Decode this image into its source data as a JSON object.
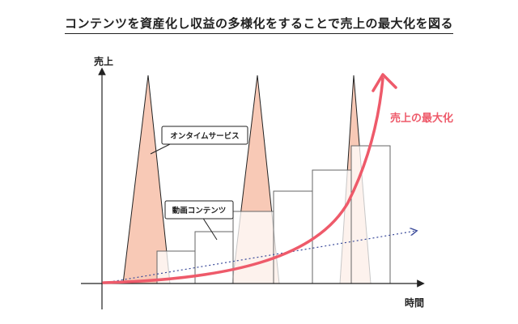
{
  "title": "コンテンツを資産化し収益の多様化をすることで売上の最大化を図る",
  "axes": {
    "y_label": "売上",
    "x_label": "時間"
  },
  "callouts": {
    "online_service": "オンタイムサービス",
    "video_content": "動画コンテンツ"
  },
  "curve_label": "売上の最大化",
  "colors": {
    "peak_fill": "#f8c9b6",
    "peak_stroke": "#222222",
    "bar_stroke": "#666666",
    "curve": "#ee5a6a",
    "trend_dotted": "#3a4a9a",
    "axis": "#222222"
  }
}
